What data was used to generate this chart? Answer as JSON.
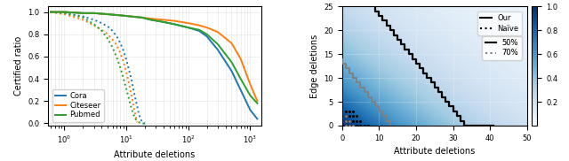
{
  "left_plot": {
    "xlabel": "Attribute deletions",
    "ylabel": "Certified ratio",
    "xlim_log": [
      0.55,
      1500
    ],
    "ylim": [
      -0.02,
      1.05
    ],
    "datasets": {
      "Cora": {
        "color": "#1f77b4",
        "solid_x": [
          0.6,
          1,
          2,
          3,
          5,
          8,
          12,
          18,
          25,
          40,
          60,
          100,
          150,
          200,
          300,
          500,
          700,
          1000,
          1300
        ],
        "solid_y": [
          1.0,
          1.0,
          0.99,
          0.99,
          0.98,
          0.97,
          0.96,
          0.95,
          0.93,
          0.91,
          0.89,
          0.86,
          0.83,
          0.78,
          0.66,
          0.47,
          0.3,
          0.12,
          0.04
        ],
        "dotted_x": [
          0.6,
          1,
          2,
          3,
          4,
          5,
          6,
          7,
          8,
          9,
          10,
          11,
          12,
          13,
          14,
          15,
          16,
          17,
          18,
          19,
          20
        ],
        "dotted_y": [
          1.0,
          0.99,
          0.96,
          0.93,
          0.9,
          0.87,
          0.83,
          0.78,
          0.72,
          0.65,
          0.57,
          0.48,
          0.4,
          0.3,
          0.22,
          0.15,
          0.08,
          0.04,
          0.01,
          0.0,
          0.0
        ]
      },
      "Citeseer": {
        "color": "#ff7f0e",
        "solid_x": [
          0.6,
          1,
          2,
          3,
          5,
          8,
          12,
          18,
          25,
          40,
          60,
          100,
          150,
          200,
          300,
          500,
          700,
          1000,
          1300
        ],
        "solid_y": [
          1.0,
          1.0,
          0.99,
          0.99,
          0.98,
          0.97,
          0.96,
          0.95,
          0.94,
          0.93,
          0.92,
          0.9,
          0.88,
          0.86,
          0.82,
          0.72,
          0.58,
          0.35,
          0.2
        ],
        "dotted_x": [
          0.6,
          1,
          2,
          3,
          4,
          5,
          6,
          7,
          8,
          9,
          10,
          11,
          12,
          13,
          14,
          15
        ],
        "dotted_y": [
          1.0,
          0.98,
          0.93,
          0.88,
          0.84,
          0.8,
          0.75,
          0.7,
          0.63,
          0.55,
          0.46,
          0.36,
          0.26,
          0.16,
          0.07,
          0.01
        ]
      },
      "Pubmed": {
        "color": "#2ca02c",
        "solid_x": [
          0.6,
          1,
          2,
          3,
          5,
          8,
          12,
          18,
          25,
          40,
          60,
          100,
          150,
          200,
          300,
          500,
          700,
          1000,
          1300
        ],
        "solid_y": [
          1.0,
          1.0,
          0.99,
          0.99,
          0.98,
          0.97,
          0.96,
          0.95,
          0.93,
          0.91,
          0.89,
          0.86,
          0.84,
          0.8,
          0.71,
          0.55,
          0.4,
          0.25,
          0.18
        ],
        "dotted_x": [
          0.6,
          1,
          2,
          3,
          4,
          5,
          6,
          7,
          8,
          9,
          10,
          11,
          12,
          13,
          14,
          15,
          16,
          17,
          18,
          19,
          20
        ],
        "dotted_y": [
          1.0,
          0.99,
          0.95,
          0.89,
          0.83,
          0.76,
          0.68,
          0.59,
          0.5,
          0.4,
          0.31,
          0.22,
          0.14,
          0.08,
          0.04,
          0.02,
          0.01,
          0.0,
          0.0,
          0.0,
          0.0
        ]
      }
    }
  },
  "right_plot": {
    "xlabel": "Attribute deletions",
    "ylabel": "Edge deletions",
    "xlim": [
      0,
      50
    ],
    "ylim": [
      0,
      25
    ],
    "xticks": [
      0,
      10,
      20,
      30,
      40,
      50
    ],
    "yticks": [
      0,
      5,
      10,
      15,
      20,
      25
    ],
    "colorbar_ticks": [
      0.2,
      0.4,
      0.6,
      0.8,
      1.0
    ],
    "our_50_x": [
      9,
      9,
      10,
      10,
      11,
      11,
      12,
      12,
      13,
      13,
      14,
      14,
      15,
      15,
      16,
      16,
      17,
      17,
      18,
      18,
      19,
      19,
      20,
      20,
      21,
      21,
      22,
      22,
      23,
      23,
      24,
      24,
      25,
      25,
      26,
      26,
      27,
      27,
      28,
      28,
      29,
      29,
      30,
      30,
      31,
      31,
      32,
      32,
      33,
      33,
      34,
      34,
      35,
      35,
      36,
      36,
      37,
      37,
      38,
      38,
      39,
      39,
      40,
      40,
      41,
      41
    ],
    "our_50_y": [
      25,
      24,
      24,
      23,
      23,
      22,
      22,
      21,
      21,
      20,
      20,
      19,
      19,
      18,
      18,
      17,
      17,
      16,
      16,
      15,
      15,
      14,
      14,
      13,
      13,
      12,
      12,
      11,
      11,
      10,
      10,
      9,
      9,
      8,
      8,
      7,
      7,
      6,
      6,
      5,
      5,
      4,
      4,
      3,
      3,
      2,
      2,
      1,
      1,
      0,
      0,
      0,
      0,
      0,
      0,
      0,
      0,
      0,
      0,
      0,
      0,
      0,
      0,
      0,
      0,
      0
    ],
    "our_70_x": [
      0,
      0,
      1,
      1,
      2,
      2,
      3,
      3,
      4,
      4,
      5,
      5,
      6,
      6,
      7,
      7,
      8,
      8,
      9,
      9,
      10,
      10,
      11,
      11,
      12,
      12,
      13,
      13
    ],
    "our_70_y": [
      14,
      13,
      13,
      12,
      12,
      11,
      11,
      10,
      10,
      9,
      9,
      8,
      8,
      7,
      7,
      6,
      6,
      5,
      5,
      4,
      4,
      3,
      3,
      2,
      2,
      1,
      1,
      0
    ],
    "naive_50_x": [
      1,
      2,
      3,
      4,
      5,
      6,
      7,
      1,
      2,
      3,
      4,
      5,
      1,
      2,
      3,
      4,
      1,
      2,
      3
    ],
    "naive_50_y": [
      0,
      0,
      0,
      0,
      0,
      0,
      0,
      1,
      1,
      1,
      1,
      1,
      2,
      2,
      2,
      2,
      3,
      3,
      3
    ],
    "naive_70_x": [
      1,
      2,
      3,
      1,
      2,
      1
    ],
    "naive_70_y": [
      0,
      0,
      0,
      1,
      1,
      2
    ]
  }
}
